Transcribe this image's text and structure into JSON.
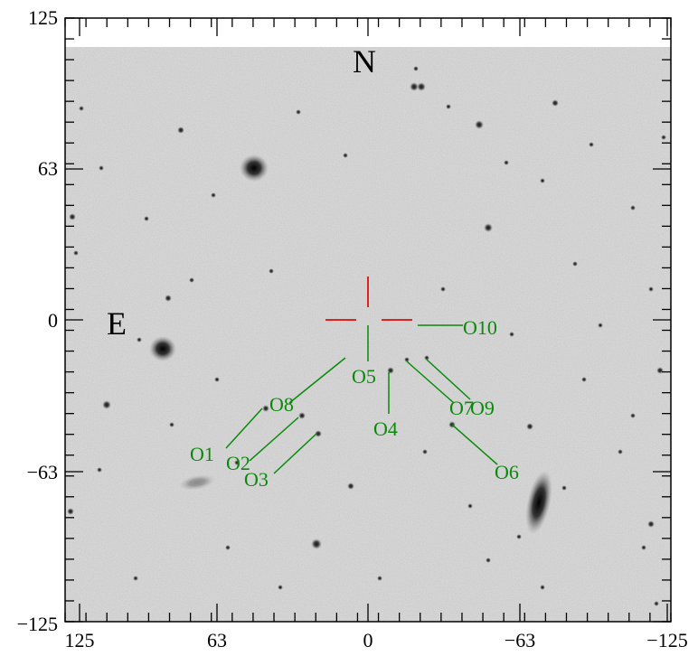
{
  "axes": {
    "x_ticks": [
      "125",
      "63",
      "0",
      "−63",
      "−125"
    ],
    "y_ticks": [
      "125",
      "63",
      "0",
      "−63",
      "−125"
    ]
  },
  "compass": {
    "north": "N",
    "east": "E"
  },
  "objects": [
    {
      "label": "O1",
      "x": 55,
      "y": -57
    },
    {
      "label": "O2",
      "x": 27,
      "y": -40
    },
    {
      "label": "O3",
      "x": 20,
      "y": -46
    },
    {
      "label": "O4",
      "x": -8,
      "y": -21
    },
    {
      "label": "O5",
      "x": 0,
      "y": -1
    },
    {
      "label": "O6",
      "x": -35,
      "y": -43
    },
    {
      "label": "O7",
      "x": -16,
      "y": -17
    },
    {
      "label": "O8",
      "x": 9,
      "y": -15
    },
    {
      "label": "O9",
      "x": -24,
      "y": -16
    },
    {
      "label": "O10",
      "x": -20,
      "y": -2
    }
  ],
  "colors": {
    "marker_lines": "#0a8a0a",
    "crosshair": "#dd2222",
    "frame": "#000000"
  }
}
